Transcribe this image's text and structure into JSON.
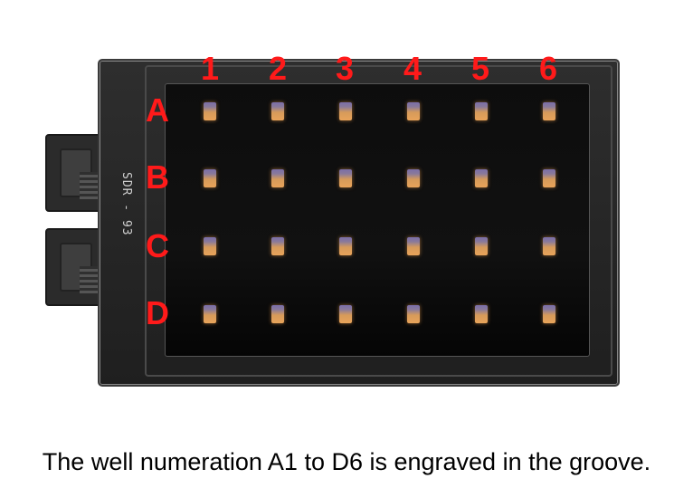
{
  "device_label": "SDR - 93",
  "columns": [
    "1",
    "2",
    "3",
    "4",
    "5",
    "6"
  ],
  "rows": [
    "A",
    "B",
    "C",
    "D"
  ],
  "label_color": "#ff1a1a",
  "caption": "The well numeration A1 to D6 is engraved in the groove."
}
